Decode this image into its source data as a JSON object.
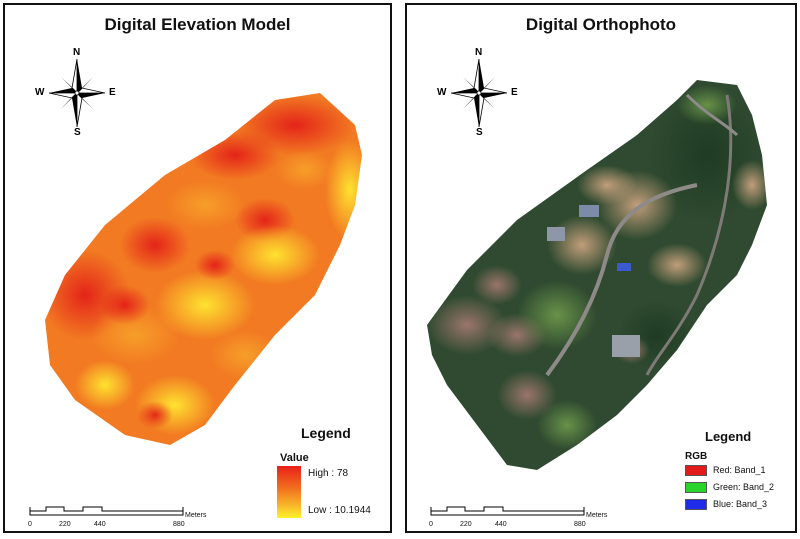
{
  "dem": {
    "title": "Digital Elevation Model",
    "compass": {
      "n": "N",
      "s": "S",
      "e": "E",
      "w": "W"
    },
    "legend": {
      "title": "Legend",
      "value_label": "Value",
      "high": "High : 78",
      "low": "Low : 10.1944",
      "colors": {
        "high": "#e8201a",
        "mid": "#f6b52a",
        "low": "#fff22a"
      }
    },
    "scale": {
      "ticks": [
        "0",
        "220",
        "440",
        "880"
      ],
      "unit": "Meters"
    }
  },
  "ortho": {
    "title": "Digital Orthophoto",
    "compass": {
      "n": "N",
      "s": "S",
      "e": "E",
      "w": "W"
    },
    "legend": {
      "title": "Legend",
      "sub": "RGB",
      "items": [
        {
          "label": "Red:   Band_1",
          "color": "#e31a1c"
        },
        {
          "label": "Green: Band_2",
          "color": "#2bd42b"
        },
        {
          "label": "Blue:  Band_3",
          "color": "#1f2be8"
        }
      ]
    },
    "scale": {
      "ticks": [
        "0",
        "220",
        "440",
        "880"
      ],
      "unit": "Meters"
    }
  }
}
